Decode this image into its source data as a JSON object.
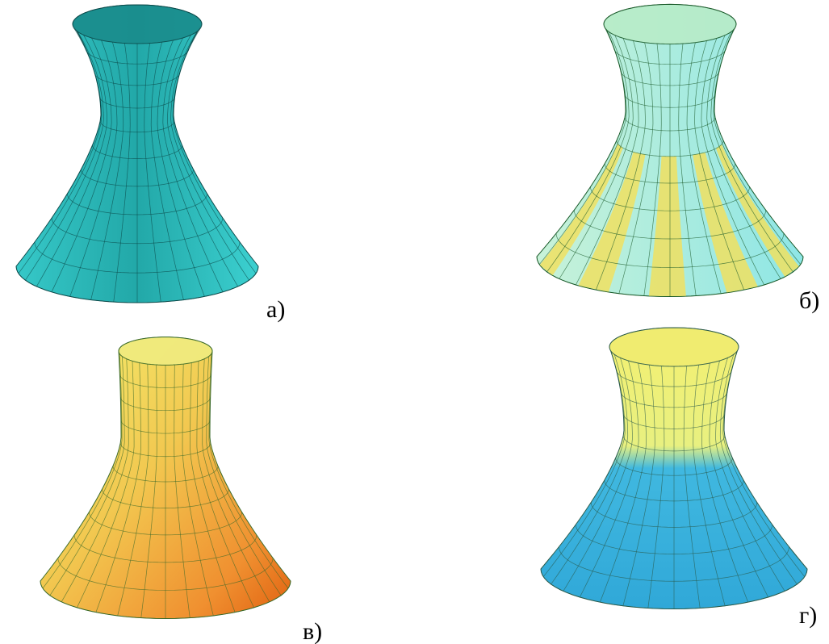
{
  "panels": [
    {
      "label": "а)"
    },
    {
      "label": "б)"
    },
    {
      "label": "в)"
    },
    {
      "label": "г)"
    }
  ]
}
